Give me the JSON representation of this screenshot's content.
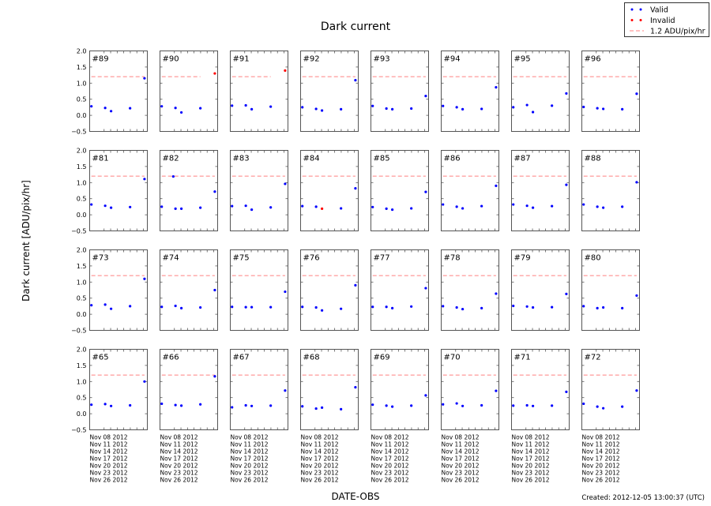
{
  "chart_data": {
    "type": "scatter",
    "title": "Dark current",
    "xlabel": "DATE-OBS",
    "ylabel": "Dark current [ADU/pix/hr]",
    "footer": "Created: 2012-12-05 13:00:37 (UTC)",
    "x_unit": "day of November 2012",
    "xlim": [
      1.4,
      27.8
    ],
    "ylim": [
      -0.5,
      2.0
    ],
    "threshold": 1.2,
    "yticks": [
      2.0,
      1.5,
      1.0,
      0.5,
      0.0,
      -0.5
    ],
    "ytick_labels": [
      "2.0",
      "1.5",
      "1.0",
      "0.5",
      "0.0",
      "−0.5"
    ],
    "xticks": [
      8,
      11,
      14,
      17,
      20,
      23,
      26
    ],
    "xtick_labels": [
      "Nov 08 2012",
      "Nov 11 2012",
      "Nov 14 2012",
      "Nov 17 2012",
      "Nov 20 2012",
      "Nov 23 2012",
      "Nov 26 2012"
    ],
    "legend": {
      "placement": "top-right",
      "entries": [
        "Valid",
        "Invalid",
        "1.2 ADU/pix/hr"
      ],
      "colors": [
        "#0000ff",
        "#ff0000",
        "#ff8080"
      ]
    },
    "default_x": [
      2.2,
      8.5,
      11.2,
      19.9,
      26.5
    ],
    "panels": [
      {
        "label": "#89",
        "y": [
          0.28,
          0.23,
          0.13,
          0.22,
          1.15
        ],
        "invalid": []
      },
      {
        "label": "#90",
        "y": [
          0.28,
          0.23,
          0.09,
          0.22,
          1.3
        ],
        "invalid": [
          4
        ]
      },
      {
        "label": "#91",
        "y": [
          0.3,
          0.31,
          0.19,
          0.27,
          1.39
        ],
        "invalid": [
          4
        ]
      },
      {
        "label": "#92",
        "y": [
          0.25,
          0.2,
          0.15,
          0.19,
          1.09
        ],
        "invalid": []
      },
      {
        "label": "#93",
        "y": [
          0.29,
          0.21,
          0.19,
          0.21,
          0.6
        ],
        "invalid": []
      },
      {
        "label": "#94",
        "y": [
          0.29,
          0.25,
          0.19,
          0.2,
          0.87
        ],
        "invalid": []
      },
      {
        "label": "#95",
        "y": [
          0.25,
          0.32,
          0.1,
          0.3,
          0.68
        ],
        "invalid": []
      },
      {
        "label": "#96",
        "y": [
          0.26,
          0.22,
          0.2,
          0.19,
          0.67
        ],
        "invalid": []
      },
      {
        "label": "#81",
        "y": [
          0.32,
          0.28,
          0.22,
          0.24,
          1.11
        ],
        "invalid": []
      },
      {
        "label": "#82",
        "x": [
          2.2,
          7.5,
          8.5,
          11.2,
          19.9,
          26.5
        ],
        "y": [
          0.25,
          1.19,
          0.19,
          0.19,
          0.22,
          0.72
        ],
        "invalid": []
      },
      {
        "label": "#83",
        "y": [
          0.27,
          0.28,
          0.16,
          0.23,
          0.96
        ],
        "invalid": []
      },
      {
        "label": "#84",
        "y": [
          0.27,
          0.25,
          0.19,
          0.2,
          0.82
        ],
        "invalid": [
          2
        ]
      },
      {
        "label": "#85",
        "y": [
          0.24,
          0.19,
          0.16,
          0.2,
          0.71
        ],
        "invalid": []
      },
      {
        "label": "#86",
        "y": [
          0.32,
          0.25,
          0.2,
          0.27,
          0.9
        ],
        "invalid": []
      },
      {
        "label": "#87",
        "y": [
          0.32,
          0.28,
          0.22,
          0.27,
          0.93
        ],
        "invalid": []
      },
      {
        "label": "#88",
        "y": [
          0.32,
          0.25,
          0.22,
          0.25,
          1.01
        ],
        "invalid": []
      },
      {
        "label": "#73",
        "y": [
          0.28,
          0.3,
          0.17,
          0.25,
          1.1
        ],
        "invalid": []
      },
      {
        "label": "#74",
        "y": [
          0.23,
          0.26,
          0.19,
          0.21,
          0.75
        ],
        "invalid": []
      },
      {
        "label": "#75",
        "y": [
          0.23,
          0.22,
          0.22,
          0.22,
          0.7
        ],
        "invalid": []
      },
      {
        "label": "#76",
        "y": [
          0.23,
          0.21,
          0.12,
          0.17,
          0.9
        ],
        "invalid": []
      },
      {
        "label": "#77",
        "y": [
          0.23,
          0.23,
          0.19,
          0.24,
          0.81
        ],
        "invalid": []
      },
      {
        "label": "#78",
        "y": [
          0.25,
          0.21,
          0.16,
          0.19,
          0.64
        ],
        "invalid": []
      },
      {
        "label": "#79",
        "y": [
          0.26,
          0.24,
          0.21,
          0.22,
          0.63
        ],
        "invalid": []
      },
      {
        "label": "#80",
        "y": [
          0.25,
          0.19,
          0.21,
          0.19,
          0.58
        ],
        "invalid": []
      },
      {
        "label": "#65",
        "y": [
          0.28,
          0.3,
          0.24,
          0.26,
          1.0
        ],
        "invalid": []
      },
      {
        "label": "#66",
        "y": [
          0.31,
          0.27,
          0.25,
          0.29,
          1.16
        ],
        "invalid": []
      },
      {
        "label": "#67",
        "y": [
          0.2,
          0.26,
          0.24,
          0.25,
          0.72
        ],
        "invalid": []
      },
      {
        "label": "#68",
        "y": [
          0.23,
          0.16,
          0.19,
          0.14,
          0.82
        ],
        "invalid": []
      },
      {
        "label": "#69",
        "y": [
          0.28,
          0.25,
          0.22,
          0.25,
          0.57
        ],
        "invalid": []
      },
      {
        "label": "#70",
        "y": [
          0.29,
          0.32,
          0.24,
          0.26,
          0.71
        ],
        "invalid": []
      },
      {
        "label": "#71",
        "y": [
          0.25,
          0.26,
          0.24,
          0.25,
          0.68
        ],
        "invalid": []
      },
      {
        "label": "#72",
        "y": [
          0.31,
          0.22,
          0.17,
          0.22,
          0.72
        ],
        "invalid": []
      }
    ]
  }
}
